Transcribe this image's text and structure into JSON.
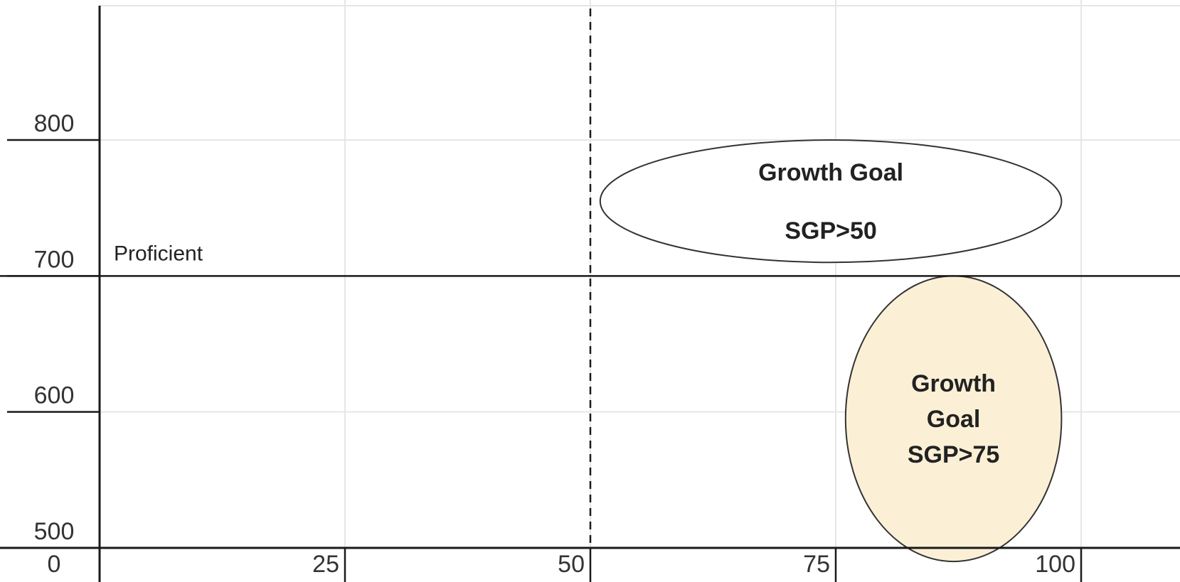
{
  "chart_data": {
    "type": "scatter",
    "title": "",
    "xlabel": "",
    "ylabel": "",
    "xlim": [
      0,
      100
    ],
    "ylim": [
      500,
      800
    ],
    "x_ticks": [
      "0",
      "25",
      "50",
      "75",
      "100"
    ],
    "y_ticks": [
      "500",
      "600",
      "700",
      "800"
    ],
    "grid": true,
    "reference_lines": {
      "proficient_y": 700,
      "proficient_label": "Proficient",
      "sgp_x": 50
    },
    "regions": [
      {
        "lines": [
          "Growth Goal",
          "SGP>50"
        ],
        "x_range": [
          51,
          98
        ],
        "y_range": [
          710,
          800
        ],
        "fill": "#ffffff"
      },
      {
        "lines": [
          "Growth",
          "Goal",
          "SGP>75"
        ],
        "x_range": [
          76,
          98
        ],
        "y_range": [
          490,
          700
        ],
        "fill": "#fbf0d6"
      }
    ],
    "colors": {
      "axis": "#1a1a1a",
      "grid": "#e6e6e6",
      "text": "#222222"
    }
  }
}
